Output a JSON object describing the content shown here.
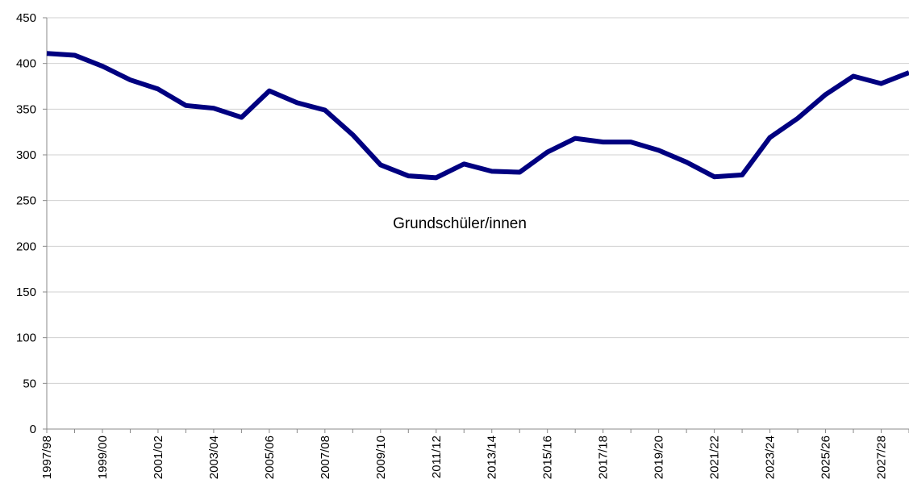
{
  "chart_data": {
    "type": "line",
    "annotation": "Grundschüler/innen",
    "categories": [
      "1997/98",
      null,
      "1999/00",
      null,
      "2001/02",
      null,
      "2003/04",
      null,
      "2005/06",
      null,
      "2007/08",
      null,
      "2009/10",
      null,
      "2011/12",
      null,
      "2013/14",
      null,
      "2015/16",
      null,
      "2017/18",
      null,
      "2019/20",
      null,
      "2021/22",
      null,
      "2023/24",
      null,
      "2025/26",
      null,
      "2027/28",
      null
    ],
    "values": [
      411,
      409,
      397,
      382,
      372,
      354,
      351,
      341,
      370,
      357,
      349,
      322,
      289,
      277,
      275,
      290,
      282,
      281,
      303,
      318,
      314,
      314,
      305,
      292,
      276,
      278,
      319,
      340,
      366,
      386,
      378,
      390
    ],
    "color": "#000080",
    "ylim": [
      0,
      450
    ],
    "yticks": [
      0,
      50,
      100,
      150,
      200,
      250,
      300,
      350,
      400,
      450
    ],
    "grid": true
  }
}
